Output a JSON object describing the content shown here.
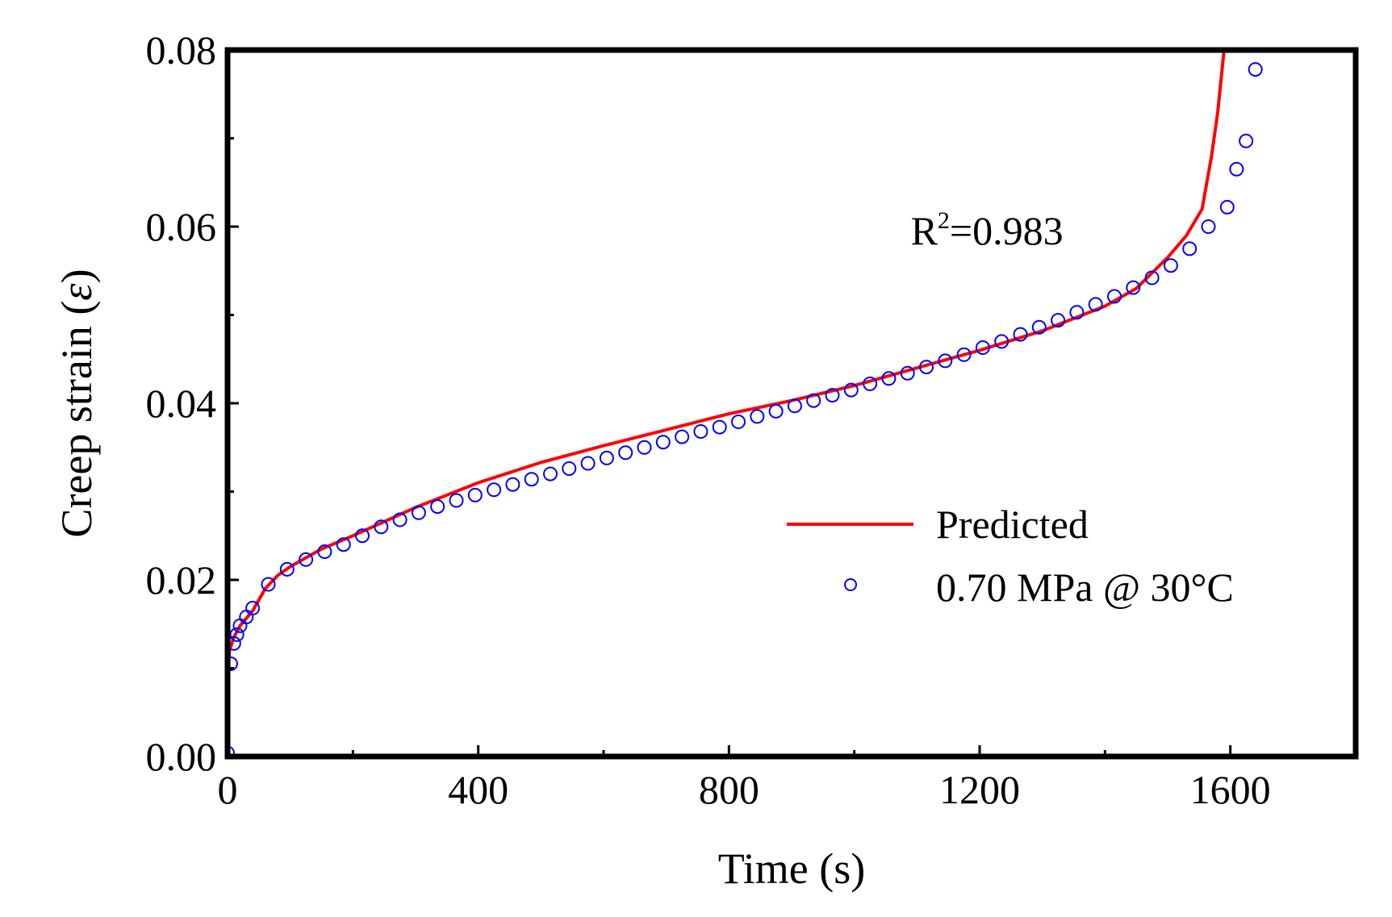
{
  "chart_data": {
    "type": "scatter",
    "title": "",
    "xlabel": "Time (s)",
    "ylabel_prefix": "Creep strain (",
    "ylabel_symbol": "ε",
    "ylabel_suffix": ")",
    "xlim": [
      0,
      1800
    ],
    "ylim": [
      0,
      0.08
    ],
    "x_ticks": [
      0,
      400,
      800,
      1200,
      1600
    ],
    "x_tick_labels": [
      "0",
      "400",
      "800",
      "1200",
      "1600"
    ],
    "x_minor_ticks": [
      200,
      600,
      1000,
      1400,
      1800
    ],
    "y_ticks": [
      0,
      0.02,
      0.04,
      0.06,
      0.08
    ],
    "y_tick_labels": [
      "0.00",
      "0.02",
      "0.04",
      "0.06",
      "0.08"
    ],
    "y_minor_ticks": [
      0.01,
      0.03,
      0.05,
      0.07
    ],
    "grid": false,
    "legend_position": "right",
    "annotation": {
      "base": "R",
      "sup": "2",
      "rest": "=0.983",
      "x": 1090,
      "y": 0.058
    },
    "series": [
      {
        "name": "Predicted",
        "kind": "line",
        "color": "#ff0000",
        "x": [
          0,
          1,
          3,
          10,
          20,
          40,
          60,
          80,
          100,
          150,
          200,
          300,
          400,
          500,
          600,
          700,
          800,
          900,
          1000,
          1100,
          1200,
          1300,
          1400,
          1450,
          1500,
          1530,
          1555,
          1570,
          1580,
          1590
        ],
        "y": [
          0,
          0.009,
          0.012,
          0.0135,
          0.0148,
          0.0165,
          0.019,
          0.0205,
          0.0215,
          0.0235,
          0.025,
          0.0282,
          0.031,
          0.0333,
          0.0352,
          0.037,
          0.0388,
          0.0403,
          0.042,
          0.044,
          0.046,
          0.0482,
          0.051,
          0.053,
          0.0565,
          0.059,
          0.062,
          0.068,
          0.073,
          0.08
        ]
      },
      {
        "name": "0.70 MPa @ 30°C",
        "kind": "scatter",
        "color": "#0000ff",
        "x": [
          0,
          5,
          10,
          15,
          20,
          30,
          40,
          65,
          95,
          125,
          155,
          185,
          215,
          245,
          275,
          305,
          335,
          365,
          395,
          425,
          455,
          485,
          515,
          545,
          575,
          605,
          635,
          665,
          695,
          725,
          755,
          785,
          815,
          845,
          875,
          905,
          935,
          965,
          995,
          1025,
          1055,
          1085,
          1115,
          1145,
          1175,
          1205,
          1235,
          1265,
          1295,
          1325,
          1355,
          1385,
          1415,
          1445,
          1475,
          1505,
          1535,
          1565,
          1595,
          1610,
          1625,
          1640
        ],
        "y": [
          0.0004,
          0.0105,
          0.0128,
          0.0138,
          0.0148,
          0.0158,
          0.0168,
          0.0195,
          0.0212,
          0.0223,
          0.0232,
          0.024,
          0.025,
          0.026,
          0.0268,
          0.0276,
          0.0283,
          0.029,
          0.0296,
          0.0302,
          0.0308,
          0.0314,
          0.032,
          0.0326,
          0.0332,
          0.0338,
          0.0344,
          0.035,
          0.0356,
          0.0362,
          0.0368,
          0.0373,
          0.0379,
          0.0385,
          0.0391,
          0.0397,
          0.0403,
          0.0409,
          0.0415,
          0.0422,
          0.0428,
          0.0434,
          0.0441,
          0.0448,
          0.0455,
          0.0463,
          0.047,
          0.0478,
          0.0486,
          0.0494,
          0.0503,
          0.0512,
          0.0521,
          0.0531,
          0.0542,
          0.0556,
          0.0575,
          0.06,
          0.0622,
          0.0665,
          0.0697,
          0.0778
        ]
      }
    ]
  }
}
